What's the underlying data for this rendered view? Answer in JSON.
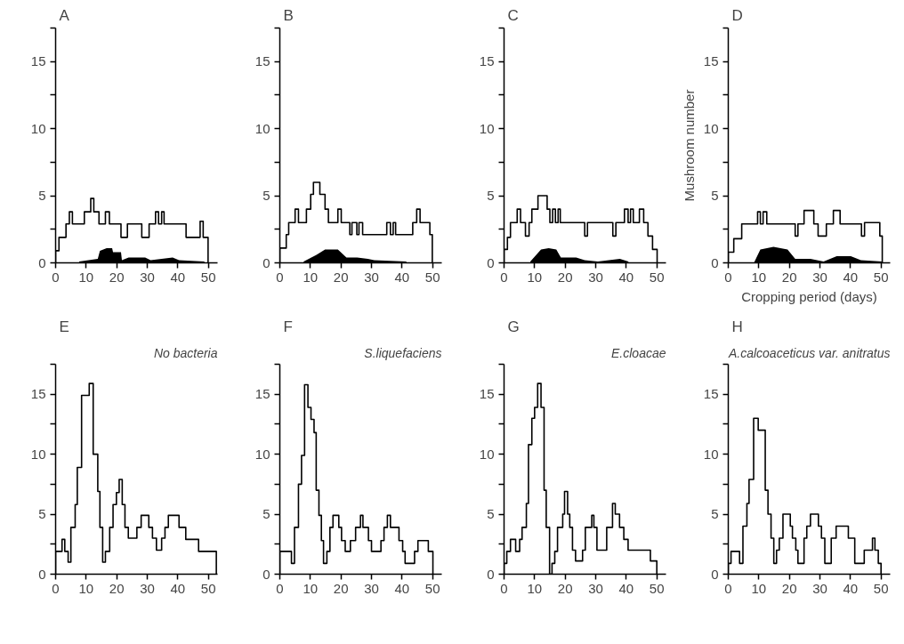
{
  "chart_data": [
    {
      "type": "step",
      "title": "A",
      "xlim": [
        0,
        53
      ],
      "ylim": [
        0,
        17.5
      ],
      "xticks": [
        0,
        10,
        20,
        30,
        40,
        50
      ],
      "yticks": [
        0,
        {
          "value": 2.5,
          "label": null
        },
        5,
        {
          "value": 7.5,
          "label": null
        },
        10,
        {
          "value": 12.5,
          "label": null
        },
        15,
        {
          "value": 17.5,
          "label": null
        }
      ],
      "series": [
        {
          "color": "#000000",
          "x": [
            0,
            0,
            1.1,
            3.4,
            4.5,
            5.5,
            9.4,
            11.5,
            12.5,
            14.2,
            16.3,
            17.6,
            21.4,
            23.5,
            28.2,
            30.6,
            32.7,
            33.7,
            34.7,
            35.5,
            42.7,
            47.3,
            48.3,
            49.9
          ],
          "values": [
            0,
            0.9,
            1.9,
            2.9,
            3.8,
            2.9,
            3.8,
            4.8,
            3.8,
            2.9,
            3.8,
            2.9,
            1.9,
            2.9,
            1.9,
            2.9,
            3.8,
            2.9,
            3.8,
            2.9,
            1.9,
            3.1,
            1.9,
            0
          ]
        },
        {
          "type": "area",
          "color": "#000000",
          "x": [
            7.7,
            13.8,
            14.5,
            16.7,
            18.5,
            18.8,
            21.4,
            21.7,
            23.9,
            29.3,
            31.1,
            38.3,
            40.4,
            48.7
          ],
          "values": [
            0.1,
            0.3,
            0.9,
            1.1,
            1.1,
            0.8,
            0.8,
            0.2,
            0.4,
            0.4,
            0.2,
            0.4,
            0.2,
            0.1
          ]
        }
      ]
    },
    {
      "type": "step",
      "title": "B",
      "xlim": [
        0,
        53
      ],
      "ylim": [
        0,
        17.5
      ],
      "xticks": [
        0,
        10,
        20,
        30,
        40,
        50
      ],
      "yticks": [
        0,
        {
          "value": 2.5,
          "label": null
        },
        5,
        {
          "value": 7.5,
          "label": null
        },
        10,
        {
          "value": 12.5,
          "label": null
        },
        15,
        {
          "value": 17.5,
          "label": null
        }
      ],
      "series": [
        {
          "color": "#000000",
          "x": [
            0,
            0,
            2.1,
            2.9,
            5.0,
            6.1,
            8.7,
            10.1,
            11.0,
            13.1,
            14.8,
            15.9,
            19.0,
            20.1,
            22.9,
            23.6,
            25.2,
            25.9,
            27.1,
            35.0,
            36.2,
            37.1,
            37.9,
            43.5,
            44.8,
            45.9,
            49.1,
            49.9
          ],
          "values": [
            0,
            1.1,
            2.1,
            3.0,
            4.0,
            3.0,
            4.0,
            5.1,
            6.0,
            5.1,
            4.0,
            3.0,
            4.0,
            3.0,
            2.1,
            3.0,
            2.1,
            3.0,
            2.1,
            3.0,
            2.1,
            3.0,
            2.1,
            3.0,
            4.0,
            3.0,
            2.1,
            0
          ]
        },
        {
          "type": "area",
          "color": "#000000",
          "x": [
            7.8,
            12.0,
            14.8,
            19.0,
            21.8,
            25.3,
            28.8,
            30.9,
            41.4
          ],
          "values": [
            0.1,
            0.6,
            1.0,
            1.0,
            0.4,
            0.4,
            0.3,
            0.2,
            0.1
          ]
        }
      ]
    },
    {
      "type": "step",
      "title": "C",
      "xlim": [
        0,
        53
      ],
      "ylim": [
        0,
        17.5
      ],
      "xticks": [
        0,
        10,
        20,
        30,
        40,
        50
      ],
      "yticks": [
        0,
        {
          "value": 2.5,
          "label": null
        },
        5,
        {
          "value": 7.5,
          "label": null
        },
        10,
        {
          "value": 12.5,
          "label": null
        },
        15,
        {
          "value": 17.5,
          "label": null
        }
      ],
      "series": [
        {
          "color": "#000000",
          "x": [
            0,
            0,
            1.1,
            2.1,
            4.3,
            5.4,
            7.0,
            8.2,
            9.1,
            11.1,
            14.1,
            15.0,
            15.9,
            16.8,
            17.7,
            18.4,
            26.4,
            27.3,
            35.6,
            36.6,
            39.4,
            40.6,
            41.4,
            42.3,
            44.3,
            45.7,
            47.1,
            48.6,
            50.1
          ],
          "values": [
            0,
            1.0,
            1.9,
            3.0,
            4.0,
            3.0,
            2.0,
            3.0,
            4.0,
            5.0,
            4.0,
            3.0,
            4.0,
            3.0,
            4.0,
            3.0,
            2.0,
            3.0,
            2.0,
            3.0,
            4.0,
            3.0,
            4.0,
            3.0,
            4.0,
            3.0,
            2.0,
            1.0,
            0
          ]
        },
        {
          "type": "area",
          "color": "#000000",
          "x": [
            8.6,
            12.1,
            14.6,
            17.1,
            18.6,
            23.6,
            26.4,
            30.7,
            37.9,
            40.7
          ],
          "values": [
            0.1,
            1.0,
            1.1,
            1.0,
            0.4,
            0.4,
            0.2,
            0.1,
            0.3,
            0.1
          ]
        }
      ]
    },
    {
      "type": "step",
      "title": "D",
      "xlabel": "Cropping period (days)",
      "ylabel": "Mushroom number",
      "xlim": [
        0,
        53
      ],
      "ylim": [
        0,
        17.5
      ],
      "xticks": [
        0,
        10,
        20,
        30,
        40,
        50
      ],
      "yticks": [
        0,
        {
          "value": 2.5,
          "label": null
        },
        5,
        {
          "value": 7.5,
          "label": null
        },
        10,
        {
          "value": 12.5,
          "label": null
        },
        15,
        {
          "value": 17.5,
          "label": null
        }
      ],
      "series": [
        {
          "color": "#000000",
          "x": [
            0,
            0,
            1.8,
            4.4,
            9.6,
            10.5,
            11.4,
            12.6,
            21.9,
            22.8,
            24.8,
            28.0,
            29.4,
            32.1,
            34.4,
            36.6,
            43.6,
            44.6,
            49.6,
            50.4
          ],
          "values": [
            0,
            0.8,
            1.8,
            2.9,
            3.8,
            2.9,
            3.8,
            2.9,
            2.0,
            2.9,
            3.9,
            2.9,
            2.0,
            2.9,
            3.9,
            2.9,
            2.0,
            3.0,
            2.0,
            0
          ]
        },
        {
          "type": "area",
          "color": "#000000",
          "x": [
            8.4,
            10.5,
            14.8,
            19.4,
            21.9,
            26.9,
            31.2,
            35.5,
            40.1,
            43.4,
            50.4
          ],
          "values": [
            0,
            1.0,
            1.2,
            1.0,
            0.3,
            0.3,
            0.1,
            0.5,
            0.5,
            0.2,
            0.1
          ]
        }
      ]
    },
    {
      "type": "step",
      "title": "E",
      "subtitle": "No bacteria",
      "xlim": [
        0,
        53
      ],
      "ylim": [
        0,
        17.5
      ],
      "xticks": [
        0,
        10,
        20,
        30,
        40,
        50
      ],
      "yticks": [
        0,
        {
          "value": 2.5,
          "label": null
        },
        5,
        {
          "value": 7.5,
          "label": null
        },
        10,
        {
          "value": 12.5,
          "label": null
        },
        15,
        {
          "value": 17.5,
          "label": null
        }
      ],
      "series": [
        {
          "color": "#000000",
          "x": [
            0,
            0,
            2.1,
            3.0,
            4.1,
            5.0,
            6.4,
            7.1,
            8.5,
            11.0,
            12.3,
            13.8,
            14.5,
            15.4,
            16.3,
            17.7,
            18.8,
            19.9,
            20.8,
            21.8,
            22.7,
            23.8,
            26.6,
            28.0,
            30.5,
            31.7,
            33.0,
            34.7,
            35.8,
            36.9,
            40.4,
            42.6,
            46.8,
            52.6
          ],
          "values": [
            0,
            1.9,
            2.9,
            1.9,
            1.0,
            3.9,
            5.8,
            8.9,
            14.9,
            15.9,
            10.0,
            6.9,
            3.9,
            1.0,
            1.9,
            3.9,
            5.8,
            6.8,
            7.9,
            5.8,
            3.9,
            3.0,
            3.9,
            4.9,
            3.9,
            3.0,
            2.0,
            3.0,
            3.9,
            4.9,
            3.9,
            2.9,
            1.9,
            0
          ]
        }
      ]
    },
    {
      "type": "step",
      "title": "F",
      "subtitle": "S.liquefaciens",
      "xlim": [
        0,
        53
      ],
      "ylim": [
        0,
        17.5
      ],
      "xticks": [
        0,
        10,
        20,
        30,
        40,
        50
      ],
      "yticks": [
        0,
        {
          "value": 2.5,
          "label": null
        },
        5,
        {
          "value": 7.5,
          "label": null
        },
        10,
        {
          "value": 12.5,
          "label": null
        },
        15,
        {
          "value": 17.5,
          "label": null
        }
      ],
      "series": [
        {
          "color": "#000000",
          "x": [
            0,
            0,
            3.8,
            4.8,
            6.1,
            7.1,
            8.1,
            9.2,
            10.2,
            11.2,
            11.9,
            12.8,
            13.6,
            14.3,
            15.4,
            16.4,
            17.4,
            19.3,
            20.2,
            21.4,
            23.1,
            24.8,
            26.4,
            27.2,
            29.0,
            30.0,
            33.1,
            34.1,
            35.2,
            36.2,
            39.0,
            40.2,
            41.0,
            44.1,
            45.2,
            48.6,
            50.1
          ],
          "values": [
            0,
            1.9,
            0.9,
            3.9,
            7.5,
            9.9,
            15.8,
            13.9,
            12.9,
            11.8,
            7.0,
            4.9,
            2.8,
            0.9,
            1.9,
            3.9,
            4.9,
            3.9,
            2.8,
            1.9,
            2.8,
            3.9,
            4.9,
            3.9,
            2.8,
            1.9,
            2.8,
            3.9,
            4.9,
            3.9,
            2.8,
            1.9,
            0.9,
            1.9,
            2.8,
            1.9,
            0
          ]
        }
      ]
    },
    {
      "type": "step",
      "title": "G",
      "subtitle": "E.cloacae",
      "xlim": [
        0,
        53
      ],
      "ylim": [
        0,
        17.5
      ],
      "xticks": [
        0,
        10,
        20,
        30,
        40,
        50
      ],
      "yticks": [
        0,
        {
          "value": 2.5,
          "label": null
        },
        5,
        {
          "value": 7.5,
          "label": null
        },
        10,
        {
          "value": 12.5,
          "label": null
        },
        15,
        {
          "value": 17.5,
          "label": null
        }
      ],
      "series": [
        {
          "color": "#000000",
          "x": [
            0,
            0,
            0.9,
            2.1,
            3.8,
            5.1,
            5.9,
            7.3,
            8.0,
            9.1,
            10.0,
            11.0,
            12.1,
            13.1,
            13.8,
            14.9,
            15.7,
            16.6,
            17.5,
            19.2,
            19.8,
            20.8,
            21.5,
            22.4,
            23.4,
            25.7,
            26.6,
            28.7,
            29.4,
            30.4,
            33.6,
            35.5,
            36.4,
            37.8,
            39.2,
            40.6,
            47.9,
            50.0
          ],
          "values": [
            0,
            0.9,
            1.9,
            2.9,
            1.9,
            2.9,
            3.9,
            5.9,
            10.8,
            13.0,
            13.9,
            15.9,
            13.9,
            7.0,
            3.9,
            0,
            0.9,
            1.9,
            3.9,
            5.0,
            6.9,
            5.0,
            3.9,
            2.0,
            1.1,
            2.0,
            3.9,
            4.9,
            3.9,
            2.0,
            3.9,
            5.9,
            5.0,
            3.9,
            2.9,
            2.0,
            1.1,
            0
          ]
        }
      ]
    },
    {
      "type": "step",
      "title": "H",
      "subtitle": "A.calcoaceticus var. anitratus",
      "xlim": [
        0,
        53
      ],
      "ylim": [
        0,
        17.5
      ],
      "xticks": [
        0,
        10,
        20,
        30,
        40,
        50
      ],
      "yticks": [
        0,
        {
          "value": 2.5,
          "label": null
        },
        5,
        {
          "value": 7.5,
          "label": null
        },
        10,
        {
          "value": 12.5,
          "label": null
        },
        15,
        {
          "value": 17.5,
          "label": null
        }
      ],
      "series": [
        {
          "color": "#000000",
          "x": [
            0,
            0,
            0.9,
            3.7,
            4.8,
            6.1,
            6.8,
            8.3,
            9.8,
            12.1,
            13.0,
            14.0,
            14.9,
            15.8,
            16.7,
            17.9,
            20.3,
            21.0,
            22.1,
            22.8,
            24.8,
            25.7,
            26.9,
            29.5,
            30.5,
            31.6,
            33.7,
            35.3,
            39.3,
            41.4,
            44.5,
            47.2,
            48.0,
            49.1,
            50.0
          ],
          "values": [
            0,
            0.9,
            1.9,
            0.9,
            4.0,
            5.9,
            7.9,
            13.0,
            12.0,
            7.0,
            5.0,
            3.0,
            0.9,
            2.0,
            3.0,
            5.0,
            4.0,
            3.0,
            2.0,
            0.9,
            3.0,
            4.0,
            5.0,
            4.0,
            3.0,
            0.9,
            3.0,
            4.0,
            3.0,
            0.9,
            2.0,
            3.0,
            2.0,
            0.9,
            0
          ]
        }
      ]
    }
  ]
}
